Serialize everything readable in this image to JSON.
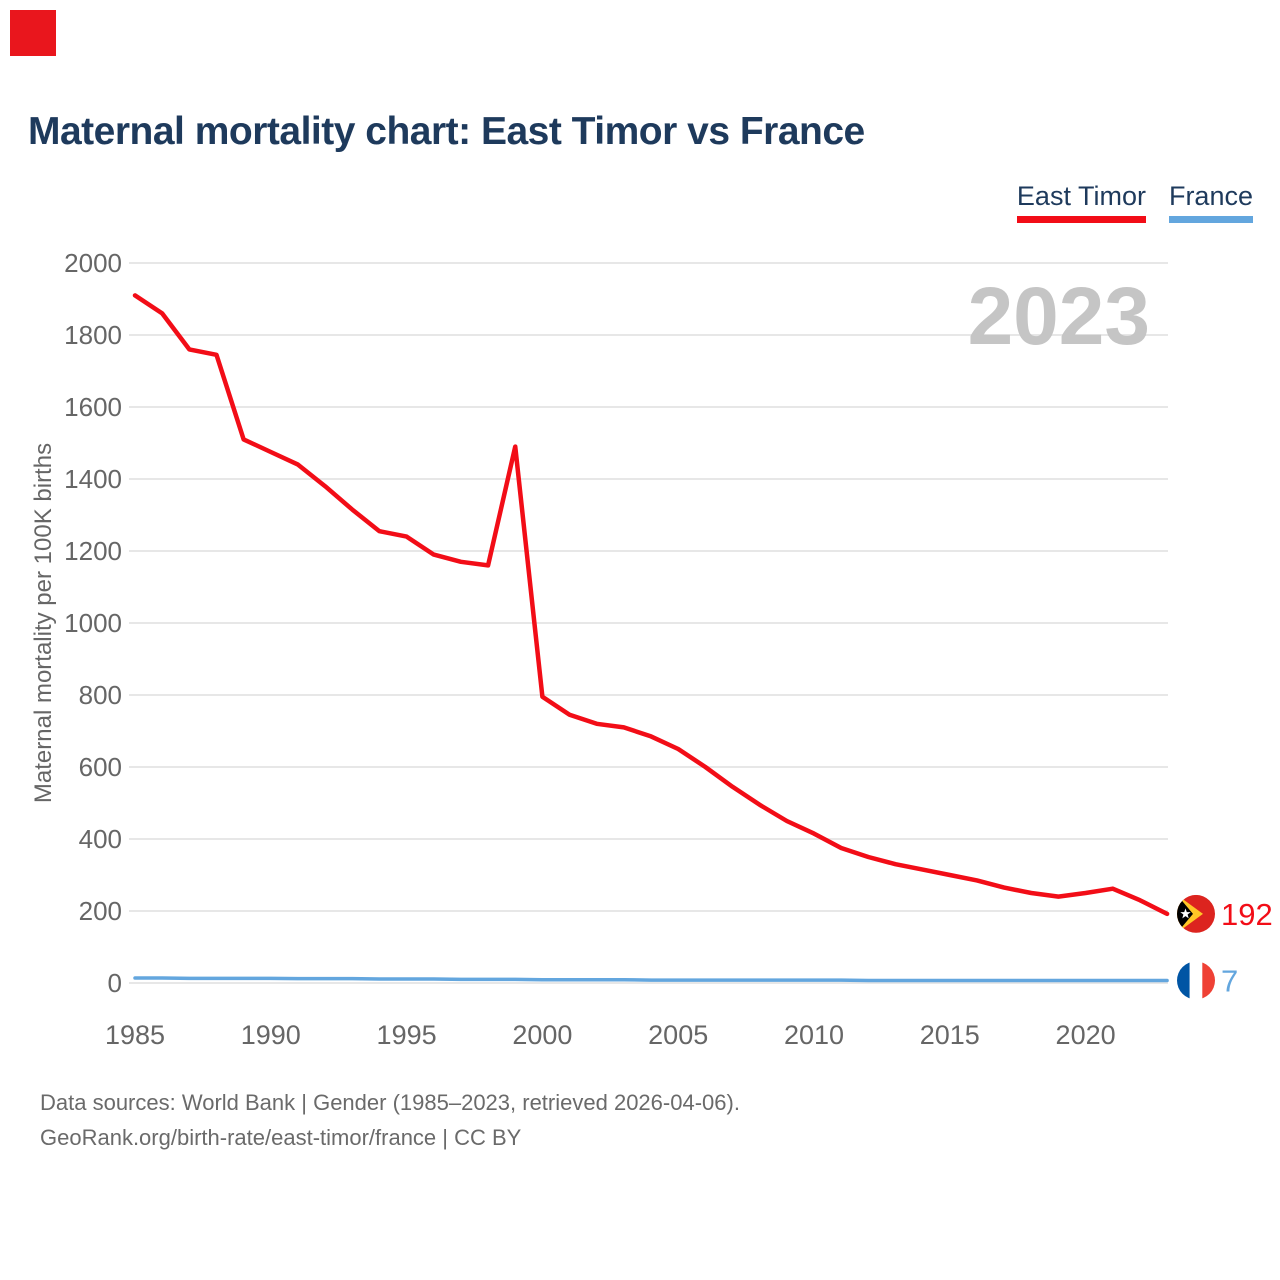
{
  "page": {
    "title": "Maternal mortality chart: East Timor vs France",
    "watermark": "2023",
    "footer_line1": "Data sources: World Bank | Gender (1985–2023, retrieved 2026-04-06).",
    "footer_line2": "GeoRank.org/birth-rate/east-timor/france | CC BY"
  },
  "colors": {
    "accent_red": "#f20d17",
    "accent_blue": "#63a6de",
    "title_navy": "#1e3a5c",
    "axis_gray": "#666666",
    "gridline_gray": "#e7e7e7",
    "watermark_gray": "#c5c5c5",
    "calibration_square_red": "#e9161d"
  },
  "legend": {
    "position": "top-right",
    "items": [
      {
        "label": "East Timor",
        "color": "#f20d17"
      },
      {
        "label": "France",
        "color": "#63a6de"
      }
    ]
  },
  "chart_data": {
    "type": "line",
    "title": "Maternal mortality chart: East Timor vs France",
    "xlabel": "",
    "ylabel": "Maternal mortality per 100K births",
    "watermark": "2023",
    "grid": "horizontal",
    "legend_position": "top-right",
    "xlim": [
      1985,
      2023
    ],
    "ylim": [
      0,
      2000
    ],
    "x_ticks": [
      1985,
      1990,
      1995,
      2000,
      2005,
      2010,
      2015,
      2020
    ],
    "y_ticks": [
      0,
      200,
      400,
      600,
      800,
      1000,
      1200,
      1400,
      1600,
      1800,
      2000
    ],
    "x": [
      1985,
      1986,
      1987,
      1988,
      1989,
      1990,
      1991,
      1992,
      1993,
      1994,
      1995,
      1996,
      1997,
      1998,
      1999,
      2000,
      2001,
      2002,
      2003,
      2004,
      2005,
      2006,
      2007,
      2008,
      2009,
      2010,
      2011,
      2012,
      2013,
      2014,
      2015,
      2016,
      2017,
      2018,
      2019,
      2020,
      2021,
      2022,
      2023
    ],
    "series": [
      {
        "id": "east-timor",
        "name": "East Timor",
        "color": "#f20d17",
        "end_label": "192",
        "flag": "east-timor",
        "values": [
          1910,
          1860,
          1760,
          1745,
          1510,
          1475,
          1440,
          1380,
          1315,
          1255,
          1240,
          1190,
          1170,
          1160,
          1490,
          795,
          745,
          720,
          710,
          685,
          650,
          600,
          545,
          495,
          450,
          415,
          375,
          350,
          330,
          315,
          300,
          285,
          265,
          250,
          240,
          250,
          262,
          230,
          192
        ]
      },
      {
        "id": "france",
        "name": "France",
        "color": "#63a6de",
        "end_label": "7",
        "flag": "france",
        "values": [
          14,
          14,
          13,
          13,
          13,
          13,
          12,
          12,
          12,
          11,
          11,
          11,
          10,
          10,
          10,
          9,
          9,
          9,
          9,
          8,
          8,
          8,
          8,
          8,
          8,
          8,
          8,
          7,
          7,
          7,
          7,
          7,
          7,
          7,
          7,
          7,
          7,
          7,
          7
        ]
      }
    ]
  }
}
